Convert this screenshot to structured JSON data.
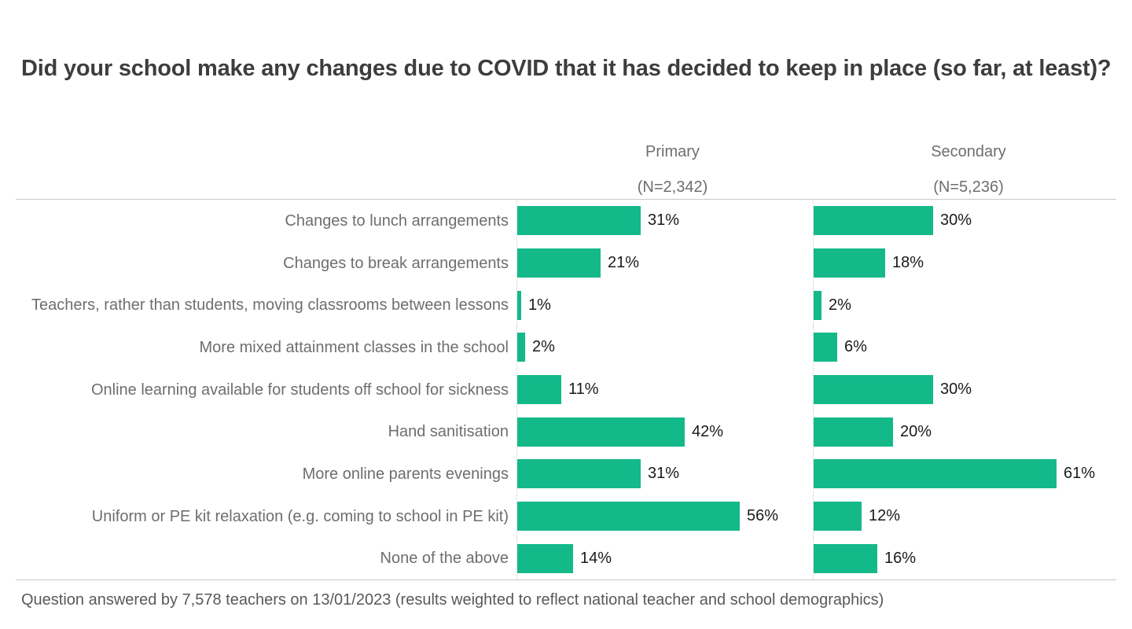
{
  "title": "Did your school make any changes due to COVID that it has decided to keep in place (so far, at least)?",
  "footer": "Question answered by 7,578 teachers on 13/01/2023 (results weighted to reflect national teacher and school demographics)",
  "colors": {
    "bar": "#14b98a",
    "title_text": "#3d3d3d",
    "label_text": "#6e6e6e",
    "value_text": "#1a1a1a",
    "rule": "#c9c9c9"
  },
  "chart_data": {
    "type": "bar",
    "orientation": "horizontal",
    "value_suffix": "%",
    "axis_range_percent": [
      0,
      74
    ],
    "grid": "dotted vertical baseline per column",
    "categories": [
      "Changes to lunch arrangements",
      "Changes to break arrangements",
      "Teachers, rather than students, moving classrooms between lessons",
      "More mixed attainment classes in the school",
      "Online learning available for students off school for sickness",
      "Hand sanitisation",
      "More online parents evenings",
      "Uniform or PE kit relaxation (e.g. coming to school in PE kit)",
      "None of the above"
    ],
    "series": [
      {
        "name": "Primary",
        "n_label": "(N=2,342)",
        "values": [
          31,
          21,
          1,
          2,
          11,
          42,
          31,
          56,
          14
        ]
      },
      {
        "name": "Secondary",
        "n_label": "(N=5,236)",
        "values": [
          30,
          18,
          2,
          6,
          30,
          20,
          61,
          12,
          16
        ]
      }
    ]
  }
}
